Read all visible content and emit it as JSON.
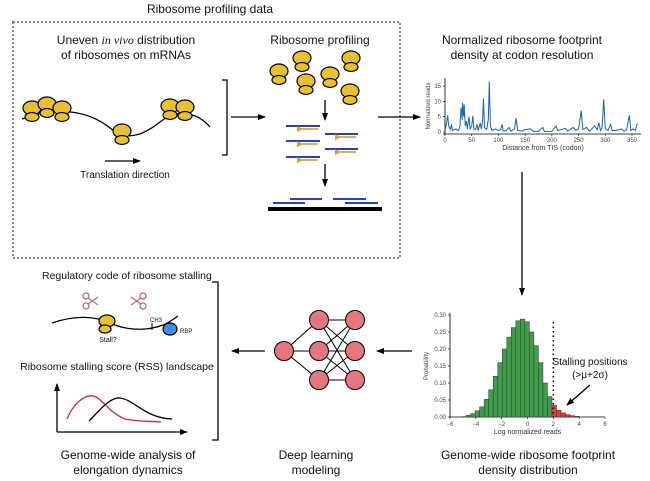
{
  "header": {
    "title": "Ribosome profiling data"
  },
  "panel_distribution": {
    "line1_pre": "Uneven ",
    "line1_italic": "in vivo",
    "line1_post": " distribution",
    "line2": "of ribosomes on mRNAs",
    "arrow_label": "Translation direction"
  },
  "panel_profiling": {
    "title": "Ribosome profiling"
  },
  "panel_density": {
    "line1": "Normalized ribosome footprint",
    "line2": "density at codon resolution"
  },
  "panel_histogram": {
    "annotation1": "Stalling positions",
    "annotation2": "(>μ+2σ)",
    "caption1": "Genome-wide ribosome footprint",
    "caption2": "density distribution"
  },
  "panel_model": {
    "caption1": "Deep learning",
    "caption2": "modeling"
  },
  "panel_analysis": {
    "regulatory_title": "Regulatory code of ribosome stalling",
    "ch3_label": "CH3",
    "rbp_label": "RBP",
    "stall_label": "Stall?",
    "rss_title": "Ribosome stalling score (RSS) landscape",
    "caption1": "Genome-wide analysis of",
    "caption2": "elongation dynamics"
  },
  "colors": {
    "ribosome": "#e8c12c",
    "fragment": "#1f3fd6",
    "adapter": "#f0960a",
    "trace": "#1565b5",
    "hist_normal": "#3e9e4a",
    "hist_stall": "#e83b3b",
    "nn_node": "#e57580",
    "rbp": "#3b8fe6",
    "scissors": "#b87070"
  },
  "chart_data": [
    {
      "type": "line",
      "xlabel": "Distance from TIS (codon)",
      "ylabel": "Normalized reads",
      "xlim": [
        0,
        360
      ],
      "ylim": [
        0,
        17
      ],
      "xticks": [
        "0",
        "50",
        "100",
        "150",
        "200",
        "250",
        "300",
        "350"
      ],
      "yticks": [
        "0",
        "5",
        "10",
        "15"
      ],
      "points": [
        [
          0,
          0.5
        ],
        [
          3,
          3
        ],
        [
          5,
          5.5
        ],
        [
          7,
          2
        ],
        [
          10,
          0.8
        ],
        [
          12,
          2.5
        ],
        [
          14,
          0.5
        ],
        [
          20,
          1
        ],
        [
          25,
          0.5
        ],
        [
          28,
          2
        ],
        [
          30,
          8
        ],
        [
          32,
          4
        ],
        [
          33,
          9.5
        ],
        [
          35,
          5
        ],
        [
          36,
          9
        ],
        [
          38,
          2
        ],
        [
          40,
          3.5
        ],
        [
          42,
          1
        ],
        [
          45,
          5
        ],
        [
          47,
          1
        ],
        [
          50,
          2
        ],
        [
          52,
          5.3
        ],
        [
          54,
          1
        ],
        [
          57,
          0.8
        ],
        [
          60,
          2.5
        ],
        [
          62,
          0.5
        ],
        [
          66,
          3
        ],
        [
          68,
          1
        ],
        [
          70,
          3
        ],
        [
          72,
          11
        ],
        [
          74,
          1.5
        ],
        [
          78,
          0.8
        ],
        [
          81,
          4
        ],
        [
          83,
          16.5
        ],
        [
          85,
          2
        ],
        [
          88,
          0.5
        ],
        [
          95,
          1
        ],
        [
          100,
          0.5
        ],
        [
          104,
          0.8
        ],
        [
          107,
          2.5
        ],
        [
          109,
          0.3
        ],
        [
          115,
          0.5
        ],
        [
          120,
          1.5
        ],
        [
          123,
          0.3
        ],
        [
          130,
          1
        ],
        [
          133,
          4.5
        ],
        [
          136,
          0.5
        ],
        [
          145,
          0.3
        ],
        [
          150,
          0.8
        ],
        [
          160,
          1
        ],
        [
          165,
          0.2
        ],
        [
          175,
          0.2
        ],
        [
          183,
          1.5
        ],
        [
          186,
          0.2
        ],
        [
          200,
          0.2
        ],
        [
          208,
          2
        ],
        [
          211,
          0.5
        ],
        [
          218,
          0.8
        ],
        [
          225,
          1.2
        ],
        [
          230,
          0.3
        ],
        [
          240,
          1.5
        ],
        [
          245,
          0.5
        ],
        [
          250,
          1
        ],
        [
          255,
          7
        ],
        [
          258,
          0.8
        ],
        [
          265,
          1.5
        ],
        [
          270,
          0.3
        ],
        [
          275,
          1
        ],
        [
          280,
          2
        ],
        [
          285,
          0.8
        ],
        [
          288,
          3
        ],
        [
          291,
          0.5
        ],
        [
          294,
          1.5
        ],
        [
          297,
          10.7
        ],
        [
          300,
          1
        ],
        [
          305,
          0.5
        ],
        [
          310,
          2.5
        ],
        [
          313,
          0.5
        ],
        [
          320,
          0.5
        ],
        [
          330,
          1
        ],
        [
          335,
          0.3
        ],
        [
          340,
          0.8
        ],
        [
          345,
          5.5
        ],
        [
          348,
          0.5
        ],
        [
          352,
          1
        ],
        [
          356,
          0.5
        ],
        [
          360,
          2.8
        ]
      ]
    },
    {
      "type": "bar",
      "xlabel": "Log normalized reads",
      "ylabel": "Probability",
      "xlim": [
        -6,
        6
      ],
      "ylim": [
        0,
        0.3
      ],
      "xticks": [
        "−6",
        "−4",
        "−2",
        "0",
        "2",
        "4",
        "6"
      ],
      "yticks": [
        "0.00",
        "0.05",
        "0.10",
        "0.15",
        "0.20",
        "0.25",
        "0.30"
      ],
      "threshold": 2,
      "bin_width": 0.35,
      "bin_centers": [
        -4.93,
        -4.58,
        -4.23,
        -3.88,
        -3.53,
        -3.18,
        -2.83,
        -2.48,
        -2.13,
        -1.78,
        -1.43,
        -1.08,
        -0.73,
        -0.38,
        -0.03,
        0.32,
        0.67,
        1.02,
        1.37,
        1.72,
        2.07,
        2.42,
        2.77,
        3.12,
        3.47,
        3.82
      ],
      "values": [
        0.001,
        0.005,
        0.01,
        0.018,
        0.03,
        0.052,
        0.08,
        0.12,
        0.16,
        0.2,
        0.235,
        0.263,
        0.283,
        0.288,
        0.28,
        0.25,
        0.21,
        0.16,
        0.1,
        0.06,
        0.035,
        0.02,
        0.012,
        0.007,
        0.004,
        0.002
      ]
    }
  ]
}
